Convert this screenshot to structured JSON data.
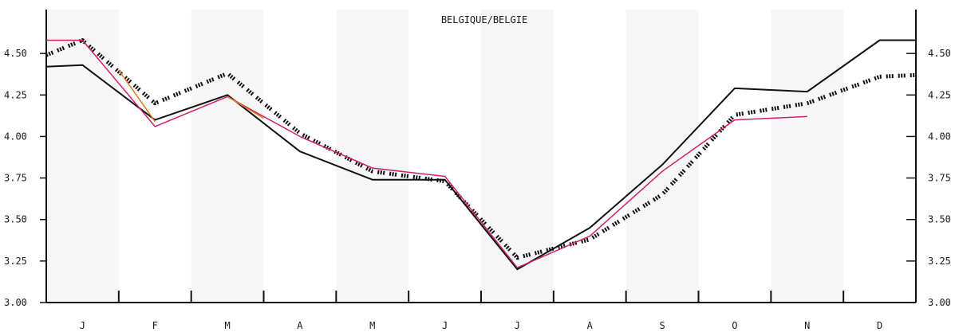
{
  "chart_data": {
    "type": "line",
    "title": "BELGIQUE/BELGIE",
    "xlabel": "",
    "ylabel": "",
    "categories": [
      "J",
      "F",
      "M",
      "A",
      "M",
      "J",
      "J",
      "A",
      "S",
      "O",
      "N",
      "D"
    ],
    "y_ticks": [
      "3.00",
      "3.25",
      "3.50",
      "3.75",
      "4.00",
      "4.25",
      "4.50"
    ],
    "ylim": [
      3.0,
      4.75
    ],
    "grid": false,
    "legend": "none",
    "series": [
      {
        "style": "solid",
        "color": "#111111",
        "points": [
          {
            "x": 0.0,
            "y": 4.42
          },
          {
            "x": 0.5,
            "y": 4.43
          },
          {
            "x": 1.5,
            "y": 4.1
          },
          {
            "x": 2.5,
            "y": 4.25
          },
          {
            "x": 3.5,
            "y": 3.91
          },
          {
            "x": 4.5,
            "y": 3.74
          },
          {
            "x": 5.5,
            "y": 3.74
          },
          {
            "x": 6.5,
            "y": 3.2
          },
          {
            "x": 7.5,
            "y": 3.45
          },
          {
            "x": 8.5,
            "y": 3.83
          },
          {
            "x": 9.5,
            "y": 4.29
          },
          {
            "x": 10.5,
            "y": 4.27
          },
          {
            "x": 11.5,
            "y": 4.58
          },
          {
            "x": 12.0,
            "y": 4.58
          }
        ]
      },
      {
        "style": "dashed",
        "color": "#111111",
        "points": [
          {
            "x": 0.0,
            "y": 4.49
          },
          {
            "x": 0.5,
            "y": 4.58
          },
          {
            "x": 1.5,
            "y": 4.2
          },
          {
            "x": 2.5,
            "y": 4.38
          },
          {
            "x": 3.5,
            "y": 4.02
          },
          {
            "x": 4.5,
            "y": 3.79
          },
          {
            "x": 5.5,
            "y": 3.73
          },
          {
            "x": 6.5,
            "y": 3.27
          },
          {
            "x": 7.5,
            "y": 3.38
          },
          {
            "x": 8.5,
            "y": 3.65
          },
          {
            "x": 9.5,
            "y": 4.13
          },
          {
            "x": 10.5,
            "y": 4.2
          },
          {
            "x": 11.5,
            "y": 4.36
          },
          {
            "x": 12.0,
            "y": 4.37
          }
        ]
      },
      {
        "style": "solid",
        "color": "#cc2266",
        "points": [
          {
            "x": 0.0,
            "y": 4.58
          },
          {
            "x": 0.5,
            "y": 4.58
          },
          {
            "x": 1.5,
            "y": 4.06
          },
          {
            "x": 2.5,
            "y": 4.24
          },
          {
            "x": 3.5,
            "y": 4.0
          },
          {
            "x": 4.5,
            "y": 3.81
          },
          {
            "x": 5.5,
            "y": 3.76
          },
          {
            "x": 6.5,
            "y": 3.21
          },
          {
            "x": 7.5,
            "y": 3.4
          },
          {
            "x": 8.5,
            "y": 3.79
          },
          {
            "x": 9.5,
            "y": 4.1
          },
          {
            "x": 10.5,
            "y": 4.12
          }
        ]
      },
      {
        "style": "solid",
        "color": "#e07a1a",
        "points": [
          {
            "x": 1.0,
            "y": 4.4
          },
          {
            "x": 1.5,
            "y": 4.09
          }
        ]
      },
      {
        "style": "solid",
        "color": "#e07a1a",
        "points": [
          {
            "x": 2.5,
            "y": 4.24
          },
          {
            "x": 3.0,
            "y": 4.11
          }
        ]
      }
    ]
  }
}
